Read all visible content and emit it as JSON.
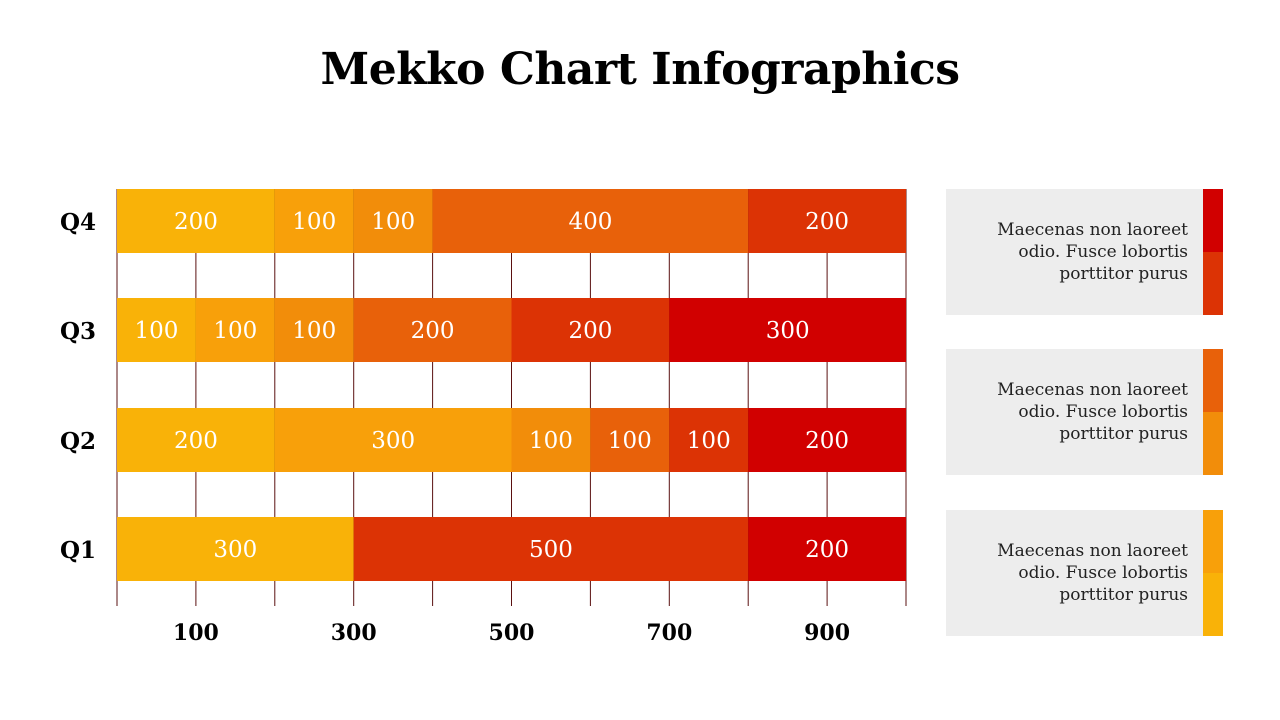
{
  "title": "Mekko Chart Infographics",
  "chart_data": {
    "type": "bar",
    "stacked": true,
    "orientation": "horizontal",
    "title": "Mekko Chart Infographics",
    "xlim": [
      0,
      1000
    ],
    "x_ticks": [
      100,
      300,
      500,
      700,
      900
    ],
    "grid_lines": [
      0,
      100,
      200,
      300,
      400,
      500,
      600,
      700,
      800,
      900,
      1000
    ],
    "rows": [
      {
        "label": "Q4",
        "segments": [
          {
            "value": 200,
            "color": "#f9b208"
          },
          {
            "value": 100,
            "color": "#f8a00a"
          },
          {
            "value": 100,
            "color": "#f28d0a"
          },
          {
            "value": 400,
            "color": "#e8610a"
          },
          {
            "value": 200,
            "color": "#dc3305"
          }
        ]
      },
      {
        "label": "Q3",
        "segments": [
          {
            "value": 100,
            "color": "#f9b208"
          },
          {
            "value": 100,
            "color": "#f8a00a"
          },
          {
            "value": 100,
            "color": "#f28d0a"
          },
          {
            "value": 200,
            "color": "#e8610a"
          },
          {
            "value": 200,
            "color": "#dc3305"
          },
          {
            "value": 300,
            "color": "#d10000"
          }
        ]
      },
      {
        "label": "Q2",
        "segments": [
          {
            "value": 200,
            "color": "#f9b208"
          },
          {
            "value": 300,
            "color": "#f8a00a"
          },
          {
            "value": 100,
            "color": "#f28d0a"
          },
          {
            "value": 100,
            "color": "#e8610a"
          },
          {
            "value": 100,
            "color": "#dc3305"
          },
          {
            "value": 200,
            "color": "#d10000"
          }
        ]
      },
      {
        "label": "Q1",
        "segments": [
          {
            "value": 300,
            "color": "#f9b208"
          },
          {
            "value": 500,
            "color": "#dc3305"
          },
          {
            "value": 200,
            "color": "#d10000"
          }
        ]
      }
    ]
  },
  "cards": [
    {
      "text": "Maecenas non laoreet odio. Fusce lobortis porttitor purus",
      "top_color": "#d10000",
      "bottom_color": "#dc3305"
    },
    {
      "text": "Maecenas non laoreet odio. Fusce lobortis porttitor purus",
      "top_color": "#e8610a",
      "bottom_color": "#f28d0a"
    },
    {
      "text": "Maecenas non laoreet odio. Fusce lobortis porttitor purus",
      "top_color": "#f8a00a",
      "bottom_color": "#f9b208"
    }
  ]
}
